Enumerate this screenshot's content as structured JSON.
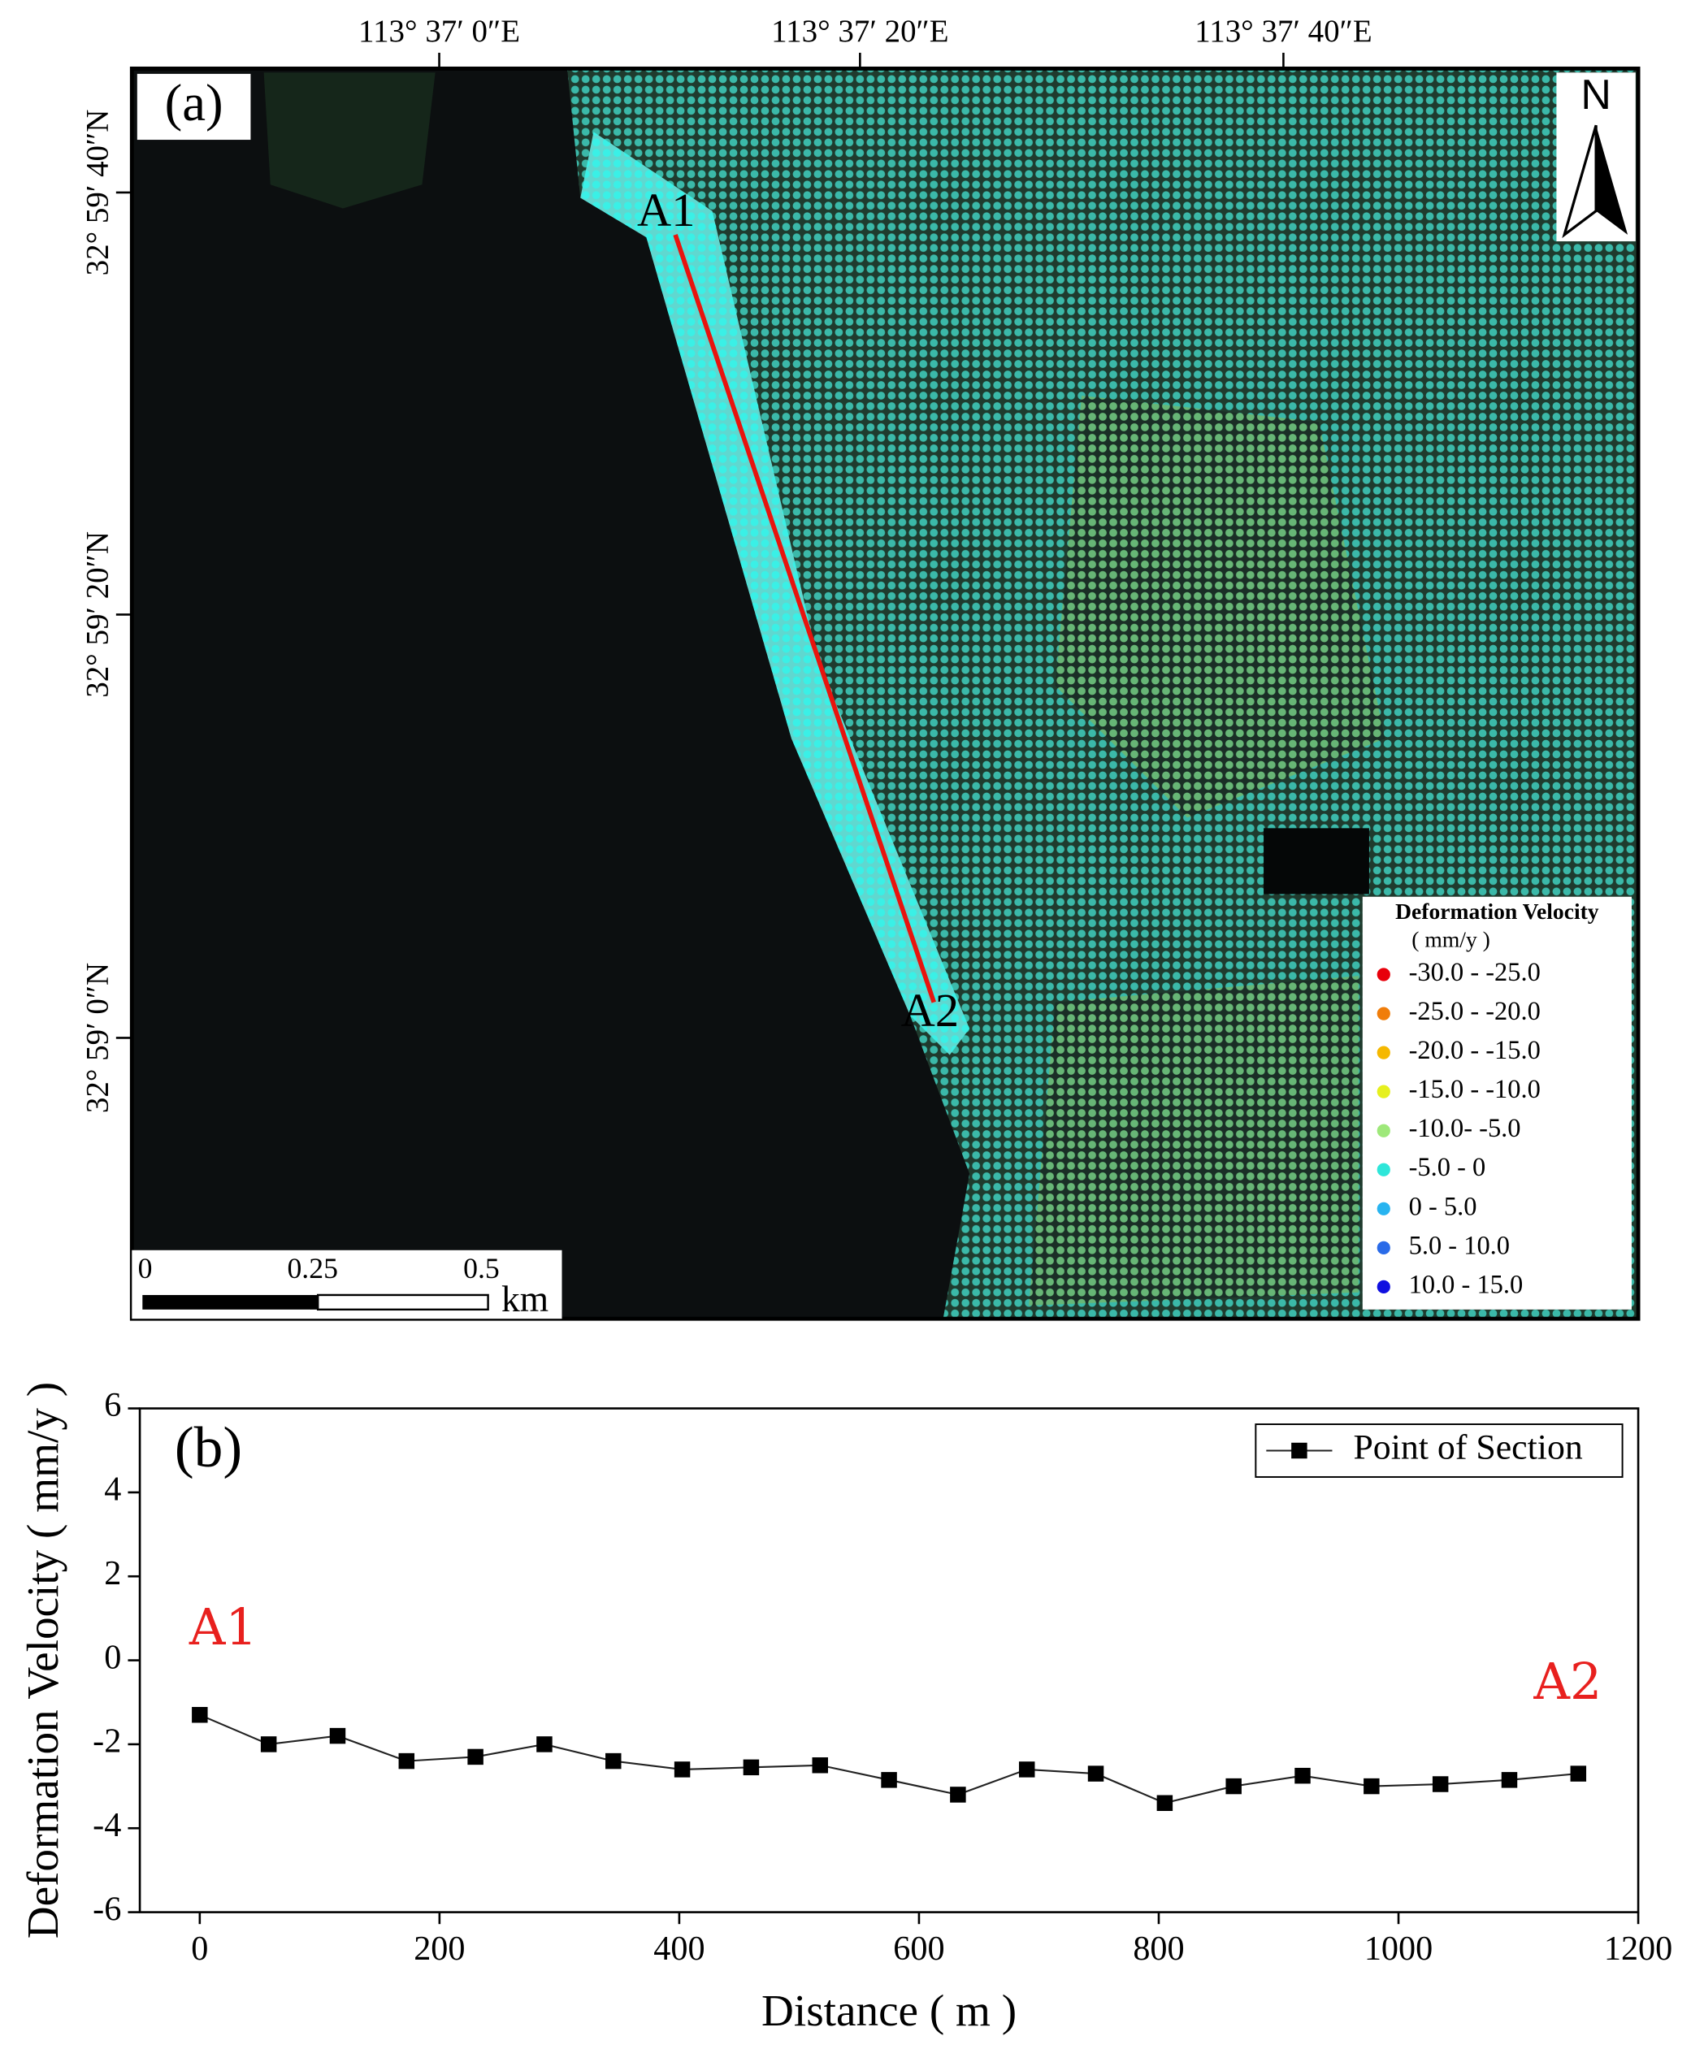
{
  "map": {
    "panel_label": "(a)",
    "lon_labels": [
      "113°  37′ 0″E",
      "113°  37′ 20″E",
      "113°  37′ 40″E"
    ],
    "lat_labels": [
      "32°  59′ 40″N",
      "32°  59′ 20″N",
      "32°  59′ 0″N"
    ],
    "profile_start": "A1",
    "profile_end": "A2",
    "north": "N",
    "scale_labels": [
      "0",
      "0.25",
      "0.5"
    ],
    "scale_unit": "km",
    "legend_title": "Deformation Velocity",
    "legend_unit": "( mm/y )",
    "legend": [
      {
        "label": "-30.0 - -25.0",
        "color": "#e8000b"
      },
      {
        "label": "-25.0 - -20.0",
        "color": "#f07d0a"
      },
      {
        "label": "-20.0 - -15.0",
        "color": "#f5b800"
      },
      {
        "label": "-15.0 - -10.0",
        "color": "#e6f01e"
      },
      {
        "label": "-10.0- -5.0",
        "color": "#9ee87a"
      },
      {
        "label": "-5.0 - 0",
        "color": "#2ee6d9"
      },
      {
        "label": "0 - 5.0",
        "color": "#28b4f0"
      },
      {
        "label": "5.0 - 10.0",
        "color": "#2a6be8"
      },
      {
        "label": "10.0 - 15.0",
        "color": "#1010e0"
      }
    ]
  },
  "chart_data": {
    "type": "line",
    "panel_label": "(b)",
    "xlabel": "Distance ( m )",
    "ylabel": "Deformation Velocity ( mm/y )",
    "x": [
      0,
      57.5,
      115,
      172.5,
      230,
      287.5,
      345,
      402.5,
      460,
      517.5,
      575,
      632.5,
      690,
      747.5,
      805,
      862.5,
      920,
      977.5,
      1035,
      1092.5,
      1150
    ],
    "series": [
      {
        "name": "Point of Section",
        "color": "#222222",
        "values": [
          -1.3,
          -2.0,
          -1.8,
          -2.4,
          -2.3,
          -2.0,
          -2.4,
          -2.6,
          -2.55,
          -2.5,
          -2.85,
          -3.2,
          -2.6,
          -2.7,
          -3.4,
          -3.0,
          -2.75,
          -3.0,
          -2.95,
          -2.85,
          -2.7
        ]
      }
    ],
    "annotations": [
      {
        "text": "A1",
        "x": 0,
        "y": 0,
        "color": "#e8201e"
      },
      {
        "text": "A2",
        "x": 1150,
        "y": -1.3,
        "color": "#e8201e"
      }
    ],
    "xlim": [
      -50,
      1200
    ],
    "ylim": [
      -6,
      6
    ],
    "xticks": [
      0,
      200,
      400,
      600,
      800,
      1000,
      1200
    ],
    "yticks": [
      -6,
      -4,
      -2,
      0,
      2,
      4,
      6
    ]
  }
}
